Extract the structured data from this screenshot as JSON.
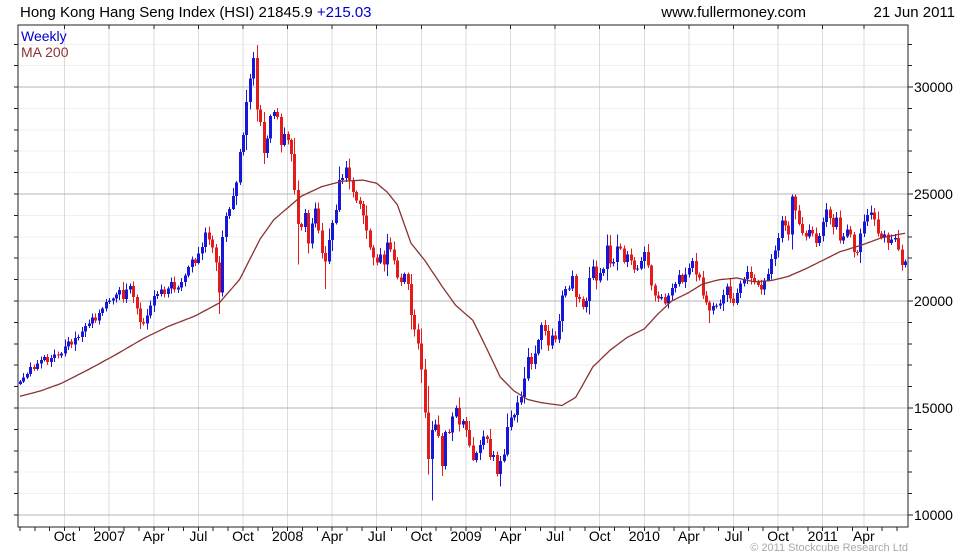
{
  "header": {
    "title": "Hong Kong Hang Seng Index (HSI) 21845.9",
    "change": "+215.03",
    "site": "www.fullermoney.com",
    "date": "21 Jun 2011"
  },
  "legend": {
    "series1": "Weekly",
    "series2": "MA 200"
  },
  "footer": {
    "copyright": "© 2011 Stockcube Research Ltd"
  },
  "colors": {
    "up": "#1717D9",
    "down": "#E31B1B",
    "ma": "#8B3232",
    "grid_minor": "#F0F0F0",
    "grid_major": "#B6B6B6",
    "grid_vert": "#DCDCDC",
    "border": "#222222",
    "axis_text": "#000000",
    "copyright": "#A9A9A9"
  },
  "chart_data": {
    "type": "candlestick",
    "title": "Hong Kong Hang Seng Index (HSI) Weekly with 200-day moving average",
    "period": "weekly",
    "start": "Jul 2006",
    "end": "21 Jun 2011",
    "last_close": 21845.9,
    "change": 215.03,
    "ylim": [
      9440,
      32900
    ],
    "y_ticks_major": [
      10000,
      15000,
      20000,
      25000,
      30000
    ],
    "y_minor_step": 1000,
    "x_tick_labels": [
      "Oct",
      "2007",
      "Apr",
      "Jul",
      "Oct",
      "2008",
      "Apr",
      "Jul",
      "Oct",
      "2009",
      "Apr",
      "Jul",
      "Oct",
      "2010",
      "Apr",
      "Jul",
      "Oct",
      "2011",
      "Apr"
    ],
    "x_tick_weeks": [
      13,
      26,
      39,
      52,
      65,
      78,
      91,
      104,
      117,
      130,
      143,
      156,
      169,
      182,
      195,
      208,
      221,
      234,
      246
    ],
    "closes": [
      16250,
      16420,
      16600,
      16920,
      16820,
      17080,
      17250,
      17390,
      17150,
      17330,
      17500,
      17460,
      17540,
      17880,
      18100,
      17960,
      18280,
      18320,
      18580,
      18840,
      18960,
      19240,
      19080,
      19440,
      19640,
      19960,
      20020,
      20110,
      20310,
      20520,
      20090,
      20540,
      20700,
      20180,
      19650,
      19020,
      18950,
      19320,
      19800,
      20230,
      20320,
      20530,
      20320,
      20580,
      20880,
      20530,
      20630,
      20900,
      21200,
      21580,
      21940,
      21770,
      22210,
      22530,
      23210,
      22880,
      22500,
      21790,
      20390,
      22990,
      23980,
      24310,
      24900,
      25550,
      26970,
      27770,
      29300,
      30400,
      31350,
      28950,
      28360,
      26910,
      27600,
      28640,
      28840,
      28600,
      27300,
      27810,
      27520,
      26870,
      25200,
      23600,
      23460,
      24120,
      22700,
      23620,
      24330,
      23300,
      22240,
      21840,
      22850,
      23650,
      24250,
      25650,
      25760,
      26240,
      25650,
      25100,
      24710,
      24530,
      24000,
      23300,
      22500,
      22040,
      21800,
      22180,
      21700,
      22730,
      22400,
      21900,
      21100,
      20900,
      21260,
      20790,
      19350,
      18680,
      18010,
      16800,
      14800,
      12620,
      13970,
      14240,
      13700,
      12300,
      13890,
      13850,
      14600,
      15000,
      14240,
      14390,
      13970,
      13260,
      12580,
      12900,
      13280,
      13660,
      13550,
      12700,
      12810,
      11920,
      12530,
      12830,
      14120,
      14550,
      14680,
      15260,
      15520,
      16380,
      17390,
      17060,
      17550,
      18170,
      18890,
      18600,
      17920,
      18380,
      18200,
      19060,
      20250,
      20570,
      20580,
      21160,
      20200,
      20100,
      19720,
      20010,
      21070,
      21620,
      20960,
      21300,
      21500,
      22590,
      21750,
      21830,
      22550,
      22460,
      21820,
      22170,
      21900,
      21480,
      21520,
      21870,
      22280,
      21650,
      20730,
      20250,
      20120,
      20190,
      19890,
      20270,
      20610,
      20790,
      21210,
      20890,
      21240,
      21540,
      21870,
      21240,
      21110,
      20250,
      19920,
      19550,
      19770,
      19780,
      19880,
      20290,
      20690,
      20130,
      19910,
      20380,
      20820,
      21030,
      21360,
      21070,
      20890,
      20740,
      20540,
      20970,
      21260,
      21970,
      22360,
      22940,
      23760,
      23520,
      23100,
      24880,
      24220,
      23610,
      23170,
      23010,
      23320,
      23160,
      22720,
      23030,
      23690,
      24280,
      23880,
      23450,
      23910,
      22830,
      23010,
      23340,
      23120,
      22300,
      22290,
      23160,
      23720,
      24010,
      24140,
      23810,
      23160,
      22960,
      23120,
      22710,
      22870,
      22950,
      22420,
      21695,
      21846
    ],
    "extremes": [
      {
        "week": 58,
        "low": 19386
      },
      {
        "week": 69,
        "high": 31958
      },
      {
        "week": 81,
        "low": 21709
      },
      {
        "week": 89,
        "low": 20573
      },
      {
        "week": 119,
        "low": 11900
      },
      {
        "week": 120,
        "low": 10676,
        "high": 14400
      },
      {
        "week": 123,
        "low": 11815
      },
      {
        "week": 140,
        "low": 11344
      },
      {
        "week": 174,
        "high": 23099
      },
      {
        "week": 201,
        "low": 18971
      },
      {
        "week": 225,
        "high": 24988
      },
      {
        "week": 244,
        "low": 22120
      },
      {
        "week": 248,
        "high": 24468
      }
    ],
    "ma200": {
      "label": "MA 200",
      "anchors": [
        [
          0,
          15550
        ],
        [
          6,
          15800
        ],
        [
          12,
          16150
        ],
        [
          20,
          16800
        ],
        [
          28,
          17500
        ],
        [
          36,
          18250
        ],
        [
          43,
          18800
        ],
        [
          51,
          19300
        ],
        [
          58,
          19900
        ],
        [
          64,
          21000
        ],
        [
          70,
          22900
        ],
        [
          74,
          23800
        ],
        [
          78,
          24350
        ],
        [
          82,
          24900
        ],
        [
          88,
          25350
        ],
        [
          94,
          25600
        ],
        [
          100,
          25650
        ],
        [
          104,
          25500
        ],
        [
          107,
          25100
        ],
        [
          110,
          24500
        ],
        [
          114,
          22700
        ],
        [
          118,
          21900
        ],
        [
          123,
          20700
        ],
        [
          127,
          19800
        ],
        [
          132,
          19100
        ],
        [
          136,
          17800
        ],
        [
          140,
          16450
        ],
        [
          144,
          15800
        ],
        [
          148,
          15400
        ],
        [
          152,
          15250
        ],
        [
          158,
          15120
        ],
        [
          162,
          15500
        ],
        [
          167,
          16920
        ],
        [
          172,
          17700
        ],
        [
          177,
          18300
        ],
        [
          182,
          18700
        ],
        [
          186,
          19400
        ],
        [
          190,
          20000
        ],
        [
          195,
          20400
        ],
        [
          199,
          20800
        ],
        [
          204,
          21000
        ],
        [
          209,
          21080
        ],
        [
          214,
          20900
        ],
        [
          219,
          20960
        ],
        [
          224,
          21150
        ],
        [
          229,
          21500
        ],
        [
          234,
          21900
        ],
        [
          239,
          22300
        ],
        [
          246,
          22650
        ],
        [
          251,
          22950
        ],
        [
          258,
          23170
        ]
      ]
    }
  }
}
